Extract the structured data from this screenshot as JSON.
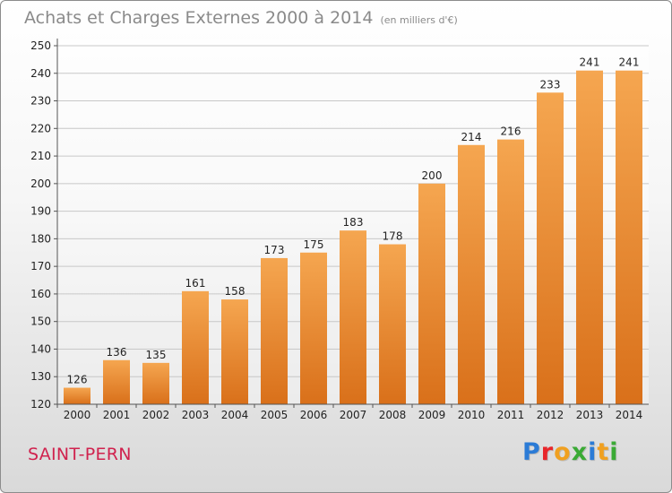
{
  "header": {
    "title": "Achats et Charges Externes 2000 à 2014",
    "subtitle": "(en milliers d'€)"
  },
  "footer": {
    "commune": "SAINT-PERN",
    "logo_text": "Proxiti",
    "logo_colors": [
      "#2b7bd6",
      "#e8262a",
      "#f0a020",
      "#3aaa35",
      "#2b7bd6",
      "#f0a020",
      "#3aaa35"
    ]
  },
  "colors": {
    "bar_light": "#f5a650",
    "bar_dark": "#d9701a",
    "grid": "#c8c8c8",
    "axis_text": "#222222"
  },
  "chart_data": {
    "type": "bar",
    "categories": [
      "2000",
      "2001",
      "2002",
      "2003",
      "2004",
      "2005",
      "2006",
      "2007",
      "2008",
      "2009",
      "2010",
      "2011",
      "2012",
      "2013",
      "2014"
    ],
    "values": [
      126,
      136,
      135,
      161,
      158,
      173,
      175,
      183,
      178,
      200,
      214,
      216,
      233,
      241,
      241
    ],
    "ylim": [
      120,
      250
    ],
    "yticks": [
      120,
      130,
      140,
      150,
      160,
      170,
      180,
      190,
      200,
      210,
      220,
      230,
      240,
      250
    ],
    "grid": true,
    "data_labels": true
  }
}
